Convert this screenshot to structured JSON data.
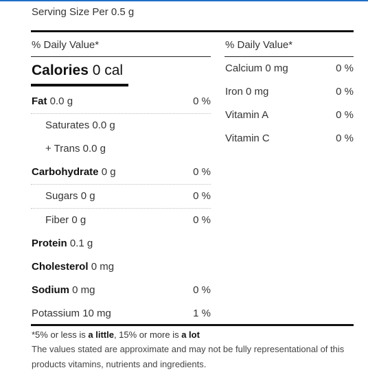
{
  "serving": {
    "label": "Serving Size Per 0.5 g"
  },
  "left_header": "% Daily Value*",
  "right_header": "% Daily Value*",
  "calories": {
    "label": "Calories",
    "value": "0 cal"
  },
  "left_rows": [
    {
      "name": "Fat",
      "amount": "0.0 g",
      "pct": "0 %",
      "bold": true
    },
    {
      "name": "Saturates",
      "amount": "0.0 g",
      "pct": "",
      "bold": false
    },
    {
      "name": "+ Trans",
      "amount": "0.0 g",
      "pct": "",
      "bold": false
    },
    {
      "name": "Carbohydrate",
      "amount": "0 g",
      "pct": "0 %",
      "bold": true
    },
    {
      "name": "Sugars",
      "amount": "0 g",
      "pct": "0 %",
      "bold": false
    },
    {
      "name": "Fiber",
      "amount": "0 g",
      "pct": "0 %",
      "bold": false
    },
    {
      "name": "Protein",
      "amount": "0.1 g",
      "pct": "",
      "bold": true
    },
    {
      "name": "Cholesterol",
      "amount": "0 mg",
      "pct": "",
      "bold": true
    },
    {
      "name": "Sodium",
      "amount": "0 mg",
      "pct": "0 %",
      "bold": true
    },
    {
      "name": "Potassium",
      "amount": "10 mg",
      "pct": "1 %",
      "bold": false
    }
  ],
  "right_rows": [
    {
      "name": "Calcium 0 mg",
      "pct": "0 %"
    },
    {
      "name": "Iron 0 mg",
      "pct": "0 %"
    },
    {
      "name": "Vitamin A",
      "pct": "0 %"
    },
    {
      "name": "Vitamin C",
      "pct": "0 %"
    }
  ],
  "footnote": {
    "prefix": "*5% or less is ",
    "little": "a little",
    "middle": ", 15% or more is ",
    "lot": "a lot"
  },
  "disclaimer": "The values stated are approximate and may not be fully representational of this products vitamins, nutrients and ingredients."
}
